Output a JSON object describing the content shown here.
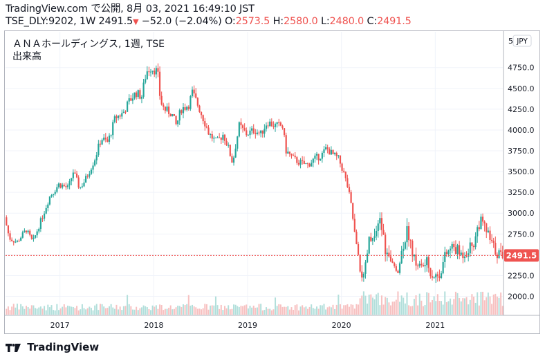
{
  "header": {
    "site": "TradingView.com",
    "published_prefix": "で公開,",
    "published_date": "8月 03, 2021 16:49:10 JST",
    "symbol_line": "TSE_DLY:9202, 1W",
    "last_price": "2491.5",
    "down_arrow": "▼",
    "change": "−52.0 (−2.04%)",
    "o_label": "O:",
    "o_value": "2573.5",
    "h_label": "H:",
    "h_value": "2580.0",
    "l_label": "L:",
    "l_value": "2480.0",
    "c_label": "C:",
    "c_value": "2491.5"
  },
  "legend": {
    "instrument": "ＡＮＡホールディングス, 1週, TSE",
    "volume_label": "出来高",
    "currency": "JPY",
    "partial_tick": "5"
  },
  "brand": {
    "name": "TradingView"
  },
  "colors": {
    "up": "#26a69a",
    "down": "#ef5350",
    "up_volume": "#b2dfdb",
    "down_volume": "#f7c1c1",
    "grid": "#f0f3fa",
    "last_price_line": "#ef5350"
  },
  "chart_data": {
    "type": "candlestick",
    "interval": "1W",
    "y_axis": {
      "min": 1780,
      "max": 5180,
      "ticks": [
        2000,
        2250,
        2500,
        2750,
        3000,
        3250,
        3500,
        3750,
        4000,
        4250,
        4500,
        4750
      ],
      "tick_labels": [
        "2000.0",
        "2250.0",
        "2500.0",
        "2750.0",
        "3000.0",
        "3250.0",
        "3500.0",
        "3750.0",
        "4000.0",
        "4250.0",
        "4500.0",
        "4750.0"
      ]
    },
    "x_axis": {
      "start": 2016.42,
      "end": 2021.72,
      "labels": [
        "2017",
        "2018",
        "2019",
        "2020",
        "2021"
      ],
      "label_positions": [
        2017,
        2018,
        2019,
        2020,
        2021
      ]
    },
    "last_price_label": "2491.5",
    "last_price": 2491.5,
    "path": [
      [
        2016.42,
        2950
      ],
      [
        2016.47,
        2700
      ],
      [
        2016.55,
        2650
      ],
      [
        2016.65,
        2800
      ],
      [
        2016.72,
        2650
      ],
      [
        2016.83,
        2980
      ],
      [
        2016.9,
        3200
      ],
      [
        2017.0,
        3350
      ],
      [
        2017.1,
        3300
      ],
      [
        2017.15,
        3500
      ],
      [
        2017.22,
        3300
      ],
      [
        2017.28,
        3400
      ],
      [
        2017.38,
        3650
      ],
      [
        2017.45,
        3900
      ],
      [
        2017.52,
        3850
      ],
      [
        2017.6,
        4150
      ],
      [
        2017.68,
        4200
      ],
      [
        2017.75,
        4350
      ],
      [
        2017.82,
        4450
      ],
      [
        2017.88,
        4400
      ],
      [
        2017.93,
        4700
      ],
      [
        2017.98,
        4750
      ],
      [
        2018.05,
        4700
      ],
      [
        2018.08,
        4350
      ],
      [
        2018.12,
        4250
      ],
      [
        2018.2,
        4200
      ],
      [
        2018.25,
        4050
      ],
      [
        2018.3,
        4250
      ],
      [
        2018.38,
        4300
      ],
      [
        2018.42,
        4450
      ],
      [
        2018.48,
        4300
      ],
      [
        2018.55,
        4100
      ],
      [
        2018.6,
        3950
      ],
      [
        2018.68,
        3850
      ],
      [
        2018.75,
        3950
      ],
      [
        2018.8,
        3800
      ],
      [
        2018.85,
        3600
      ],
      [
        2018.88,
        3800
      ],
      [
        2018.92,
        4050
      ],
      [
        2019.0,
        3950
      ],
      [
        2019.08,
        4000
      ],
      [
        2019.15,
        3950
      ],
      [
        2019.22,
        4100
      ],
      [
        2019.3,
        4050
      ],
      [
        2019.38,
        4050
      ],
      [
        2019.42,
        3750
      ],
      [
        2019.5,
        3650
      ],
      [
        2019.58,
        3600
      ],
      [
        2019.65,
        3580
      ],
      [
        2019.72,
        3650
      ],
      [
        2019.8,
        3700
      ],
      [
        2019.85,
        3780
      ],
      [
        2019.92,
        3700
      ],
      [
        2019.98,
        3650
      ],
      [
        2020.03,
        3500
      ],
      [
        2020.08,
        3300
      ],
      [
        2020.12,
        3050
      ],
      [
        2020.16,
        2650
      ],
      [
        2020.2,
        2350
      ],
      [
        2020.25,
        2200
      ],
      [
        2020.3,
        2650
      ],
      [
        2020.38,
        2700
      ],
      [
        2020.42,
        2950
      ],
      [
        2020.48,
        2550
      ],
      [
        2020.55,
        2350
      ],
      [
        2020.62,
        2350
      ],
      [
        2020.68,
        2700
      ],
      [
        2020.72,
        2800
      ],
      [
        2020.78,
        2450
      ],
      [
        2020.85,
        2350
      ],
      [
        2020.92,
        2400
      ],
      [
        2020.98,
        2250
      ],
      [
        2021.05,
        2250
      ],
      [
        2021.12,
        2500
      ],
      [
        2021.2,
        2600
      ],
      [
        2021.28,
        2500
      ],
      [
        2021.35,
        2550
      ],
      [
        2021.42,
        2650
      ],
      [
        2021.48,
        2900
      ],
      [
        2021.55,
        2800
      ],
      [
        2021.6,
        2650
      ],
      [
        2021.65,
        2550
      ],
      [
        2021.7,
        2500
      ]
    ]
  }
}
